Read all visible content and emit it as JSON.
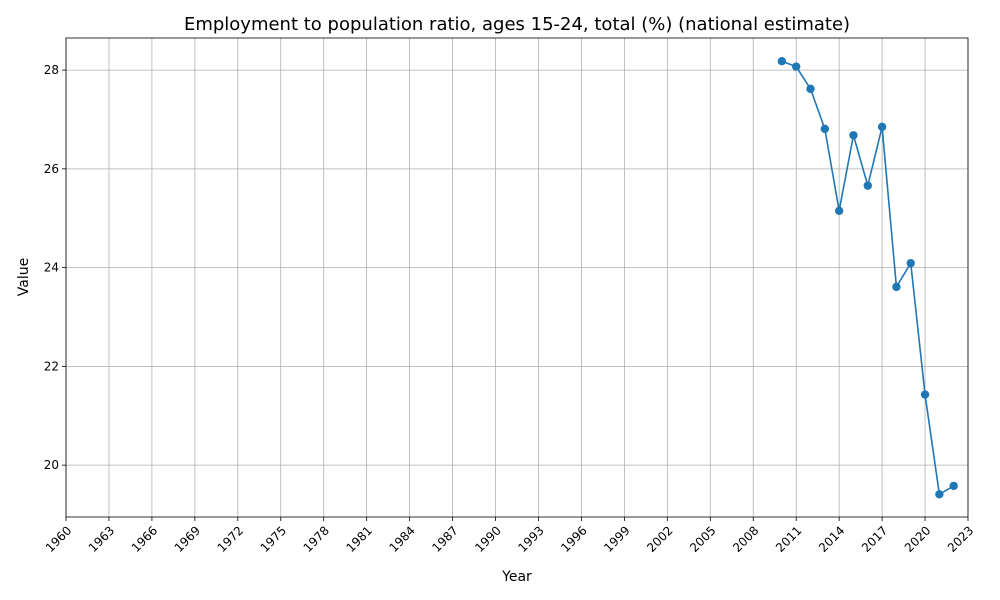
{
  "chart_data": {
    "type": "line",
    "title": "Employment to population ratio, ages 15-24, total (%) (national estimate)",
    "xlabel": "Year",
    "ylabel": "Value",
    "xlim": [
      1960,
      2023
    ],
    "ylim": [
      18.95,
      28.65
    ],
    "x_ticks": [
      1960,
      1963,
      1966,
      1969,
      1972,
      1975,
      1978,
      1981,
      1984,
      1987,
      1990,
      1993,
      1996,
      1999,
      2002,
      2005,
      2008,
      2011,
      2014,
      2017,
      2020,
      2023
    ],
    "y_ticks": [
      20,
      22,
      24,
      26,
      28
    ],
    "grid": true,
    "legend": "none",
    "series": [
      {
        "color": "#1f77b4",
        "marker": "circle",
        "x": [
          2010,
          2011,
          2012,
          2013,
          2014,
          2015,
          2016,
          2017,
          2018,
          2019,
          2020,
          2021,
          2022
        ],
        "values": [
          28.18,
          28.07,
          27.62,
          26.81,
          25.15,
          26.68,
          25.66,
          26.85,
          23.61,
          24.09,
          21.43,
          19.41,
          19.58
        ]
      }
    ]
  }
}
